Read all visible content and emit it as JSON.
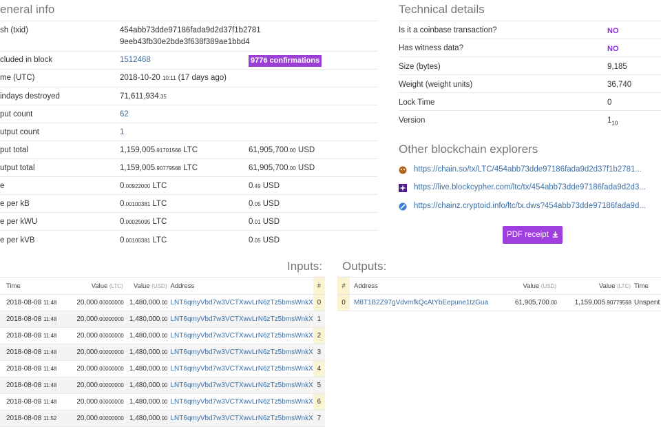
{
  "general": {
    "title": "eneral info",
    "txid_label": "sh (txid)",
    "txid_line1": "454abb73dde97186fada9d2d37f1b2781",
    "txid_line2": "9eeb43fb30e2bde3f638f389ae1bbd4",
    "block_label": "cluded in block",
    "block_value": "1512468",
    "confirmations": "9776 confirmations",
    "time_label": "me (UTC)",
    "time_date": "2018-10-20",
    "time_clock": "10:11",
    "time_ago": "(17 days ago)",
    "coindays_label": "indays destroyed",
    "coindays_main": "71,611,934",
    "coindays_frac": ".35",
    "input_count_label": "put count",
    "input_count": "62",
    "output_count_label": "utput count",
    "output_count": "1",
    "input_total_label": "put total",
    "input_total_main": "1,159,005",
    "input_total_frac": ".91701568",
    "input_total_unit": "LTC",
    "input_total_usd_main": "61,905,700",
    "input_total_usd_frac": ".00",
    "input_total_usd_unit": "USD",
    "output_total_label": "utput total",
    "output_total_main": "1,159,005",
    "output_total_frac": ".90779568",
    "output_total_unit": "LTC",
    "output_total_usd_main": "61,905,700",
    "output_total_usd_frac": ".00",
    "output_total_usd_unit": "USD",
    "fee_label": "e",
    "fee_main": "0",
    "fee_frac": ".00922000",
    "fee_unit": "LTC",
    "fee_usd_main": "0",
    "fee_usd_frac": ".49",
    "fee_usd_unit": "USD",
    "fee_kb_label": "e per kB",
    "fee_kb_main": "0",
    "fee_kb_frac": ".00100381",
    "fee_kb_unit": "LTC",
    "fee_kb_usd_main": "0",
    "fee_kb_usd_frac": ".05",
    "fee_kb_usd_unit": "USD",
    "fee_kwu_label": "e per kWU",
    "fee_kwu_main": "0",
    "fee_kwu_frac": ".00025095",
    "fee_kwu_unit": "LTC",
    "fee_kwu_usd_main": "0",
    "fee_kwu_usd_frac": ".01",
    "fee_kwu_usd_unit": "USD",
    "fee_kvb_label": "e per kVB",
    "fee_kvb_main": "0",
    "fee_kvb_frac": ".00100381",
    "fee_kvb_unit": "LTC",
    "fee_kvb_usd_main": "0",
    "fee_kvb_usd_frac": ".05",
    "fee_kvb_usd_unit": "USD"
  },
  "technical": {
    "title": "Technical details",
    "coinbase_label": "Is it a coinbase transaction?",
    "coinbase_value": "NO",
    "witness_label": "Has witness data?",
    "witness_value": "NO",
    "size_label": "Size (bytes)",
    "size_value": "9,185",
    "weight_label": "Weight (weight units)",
    "weight_value": "36,740",
    "lock_label": "Lock Time",
    "lock_value": "0",
    "version_label": "Version",
    "version_main": "1",
    "version_sub": "10"
  },
  "explorers": {
    "title": "Other blockchain explorers",
    "items": [
      {
        "icon": "sochain-icon",
        "url": "https://chain.so/tx/LTC/454abb73dde97186fada9d2d37f1b2781..."
      },
      {
        "icon": "blockcypher-icon",
        "url": "https://live.blockcypher.com/ltc/tx/454abb73dde97186fada9d2d3..."
      },
      {
        "icon": "cryptoid-icon",
        "url": "https://chainz.cryptoid.info/ltc/tx.dws?454abb73dde97186fada9d..."
      }
    ],
    "pdf_label": "PDF receipt"
  },
  "inputs": {
    "title": "Inputs:",
    "headers": {
      "time": "Time",
      "value": "Value",
      "value_unit": "(LTC)",
      "usd": "Value",
      "usd_unit": "(USD)",
      "address": "Address",
      "index": "#"
    },
    "rows": [
      {
        "date": "2018-08-08",
        "clock": "11:48",
        "ltc_main": "20,000",
        "ltc_frac": ".00000000",
        "usd_main": "1,480,000",
        "usd_frac": ".00",
        "address": "LNT6qmyVbd7w3VCTXwvLrN6zTz5bmsWnkX",
        "index": "0"
      },
      {
        "date": "2018-08-08",
        "clock": "11:48",
        "ltc_main": "20,000",
        "ltc_frac": ".00000000",
        "usd_main": "1,480,000",
        "usd_frac": ".00",
        "address": "LNT6qmyVbd7w3VCTXwvLrN6zTz5bmsWnkX",
        "index": "1"
      },
      {
        "date": "2018-08-08",
        "clock": "11:48",
        "ltc_main": "20,000",
        "ltc_frac": ".00000000",
        "usd_main": "1,480,000",
        "usd_frac": ".00",
        "address": "LNT6qmyVbd7w3VCTXwvLrN6zTz5bmsWnkX",
        "index": "2"
      },
      {
        "date": "2018-08-08",
        "clock": "11:48",
        "ltc_main": "20,000",
        "ltc_frac": ".00000000",
        "usd_main": "1,480,000",
        "usd_frac": ".00",
        "address": "LNT6qmyVbd7w3VCTXwvLrN6zTz5bmsWnkX",
        "index": "3"
      },
      {
        "date": "2018-08-08",
        "clock": "11:48",
        "ltc_main": "20,000",
        "ltc_frac": ".00000000",
        "usd_main": "1,480,000",
        "usd_frac": ".00",
        "address": "LNT6qmyVbd7w3VCTXwvLrN6zTz5bmsWnkX",
        "index": "4"
      },
      {
        "date": "2018-08-08",
        "clock": "11:48",
        "ltc_main": "20,000",
        "ltc_frac": ".00000000",
        "usd_main": "1,480,000",
        "usd_frac": ".00",
        "address": "LNT6qmyVbd7w3VCTXwvLrN6zTz5bmsWnkX",
        "index": "5"
      },
      {
        "date": "2018-08-08",
        "clock": "11:48",
        "ltc_main": "20,000",
        "ltc_frac": ".00000000",
        "usd_main": "1,480,000",
        "usd_frac": ".00",
        "address": "LNT6qmyVbd7w3VCTXwvLrN6zTz5bmsWnkX",
        "index": "6"
      },
      {
        "date": "2018-08-08",
        "clock": "11:52",
        "ltc_main": "20,000",
        "ltc_frac": ".00000000",
        "usd_main": "1,480,000",
        "usd_frac": ".00",
        "address": "LNT6qmyVbd7w3VCTXwvLrN6zTz5bmsWnkX",
        "index": "7"
      }
    ]
  },
  "outputs": {
    "title": "Outputs:",
    "headers": {
      "index": "#",
      "address": "Address",
      "usd": "Value",
      "usd_unit": "(USD)",
      "value": "Value",
      "value_unit": "(LTC)",
      "time": "Time"
    },
    "rows": [
      {
        "index": "0",
        "address": "M8T1B2Z97gVdvmfkQcAtYbEepune1tzGua",
        "usd_main": "61,905,700",
        "usd_frac": ".00",
        "ltc_main": "1,159,005",
        "ltc_frac": ".90779568",
        "status": "Unspent"
      }
    ]
  },
  "colors": {
    "accent": "#9b3ed6",
    "link": "#3a6ea5"
  }
}
